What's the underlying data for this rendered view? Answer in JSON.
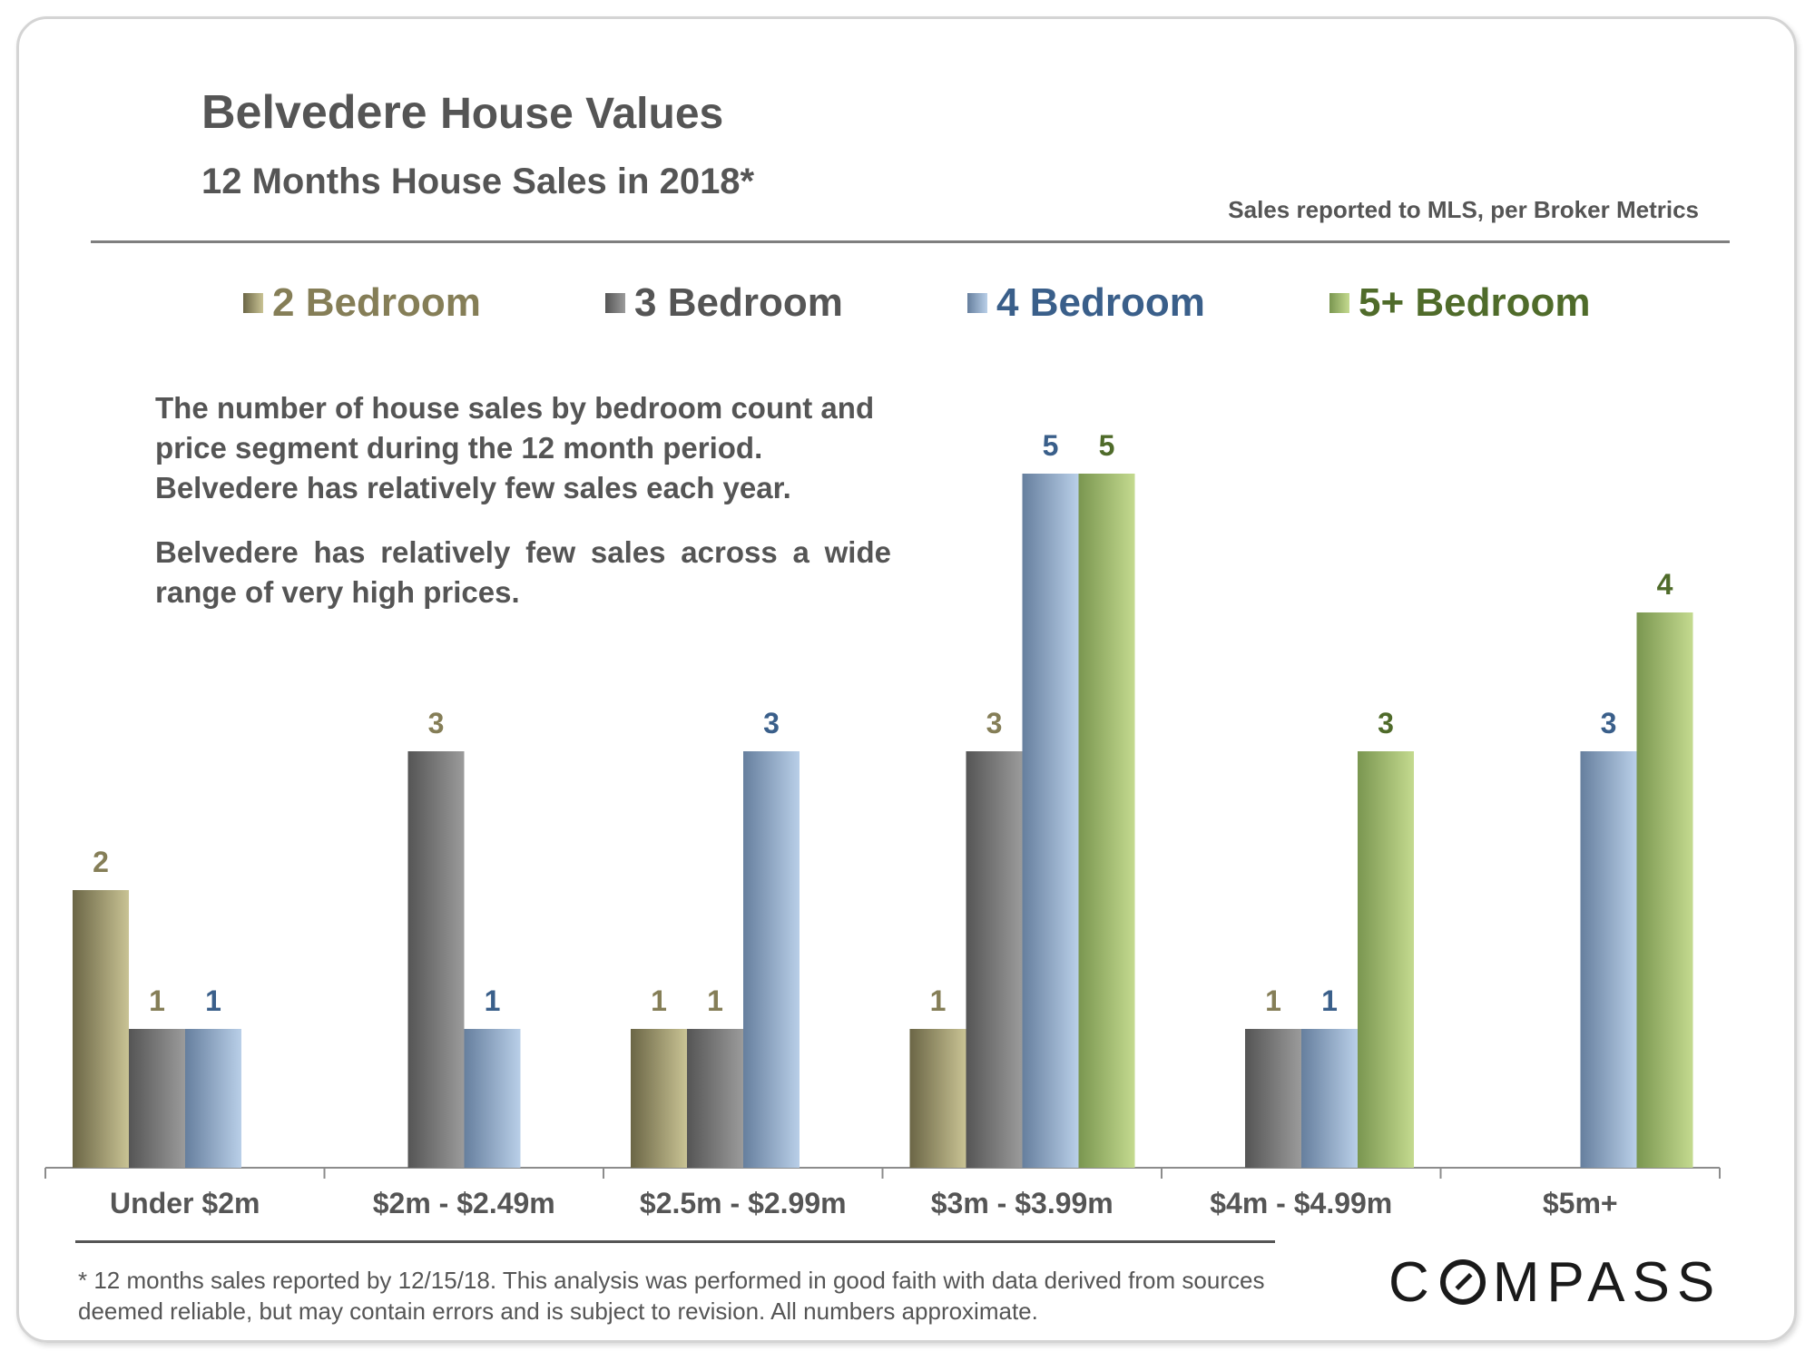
{
  "title_bold": "Belvedere",
  "title_rest": "House Values",
  "subtitle": "12 Months House Sales in 2018*",
  "source_note": "Sales reported to MLS, per Broker Metrics",
  "description_1": "The number of house sales by bedroom count and price segment during the 12 month period. Belvedere has relatively few sales each year.",
  "description_2": "Belvedere has relatively few sales across a wide range of very high prices.",
  "footnote": "* 12 months sales reported by 12/15/18. This analysis was performed in good faith with data derived from sources deemed reliable, but may contain errors and is subject to revision. All numbers approximate.",
  "logo_text": "COMPASS",
  "logo_parts": {
    "before": "C",
    "after": "MPASS"
  },
  "colors": {
    "text": "#555555",
    "series_2bd": "#857e57",
    "series_3bd": "#5a5a5a",
    "series_4bd": "#3a5f8a",
    "series_5bd": "#4f6b2a"
  },
  "chart_data": {
    "type": "bar",
    "title": "12 Months House Sales in 2018*",
    "xlabel": "",
    "ylabel": "",
    "ylim": [
      0,
      5
    ],
    "grid": false,
    "legend_position": "top",
    "categories": [
      "Under $2m",
      "$2m - $2.49m",
      "$2.5m - $2.99m",
      "$3m - $3.99m",
      "$4m - $4.99m",
      "$5m+"
    ],
    "series": [
      {
        "name": "2 Bedroom",
        "values": [
          2,
          0,
          1,
          1,
          0,
          0
        ],
        "label_color": "#857e57",
        "bar_dark": "#6b6646",
        "bar_light": "#c9c394"
      },
      {
        "name": "3 Bedroom",
        "values": [
          1,
          3,
          1,
          3,
          1,
          0
        ],
        "label_color": "#857e57",
        "bar_dark": "#555555",
        "bar_light": "#9b9b9b"
      },
      {
        "name": "4 Bedroom",
        "values": [
          1,
          1,
          3,
          5,
          1,
          3
        ],
        "label_color": "#3a5f8a",
        "bar_dark": "#667f9e",
        "bar_light": "#b9cfe8"
      },
      {
        "name": "5+ Bedroom",
        "values": [
          0,
          0,
          0,
          5,
          3,
          4
        ],
        "label_color": "#4f6b2a",
        "bar_dark": "#7a9650",
        "bar_light": "#c4da8f"
      }
    ]
  }
}
